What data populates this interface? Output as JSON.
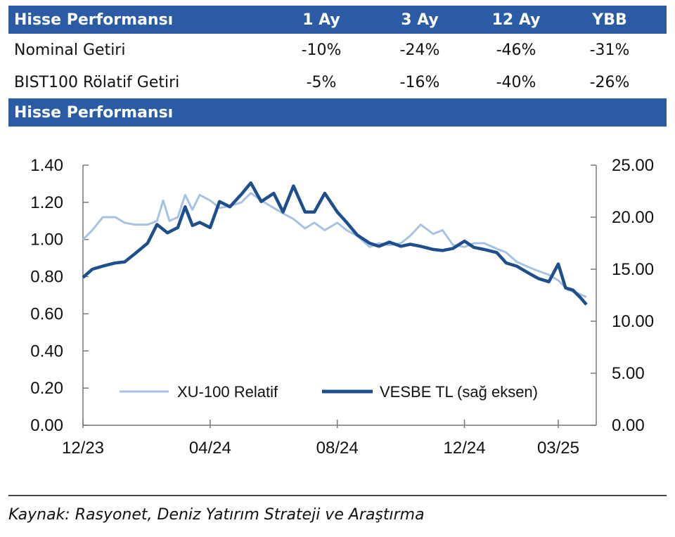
{
  "table": {
    "header": {
      "label": "Hisse Performansı",
      "cols": [
        "1 Ay",
        "3 Ay",
        "12 Ay",
        "YBB"
      ]
    },
    "rows": [
      {
        "label": "Nominal Getiri",
        "values": [
          "-10%",
          "-24%",
          "-46%",
          "-31%"
        ]
      },
      {
        "label": "BIST100 Rölatif Getiri",
        "values": [
          "-5%",
          "-16%",
          "-40%",
          "-26%"
        ]
      }
    ]
  },
  "section_title": "Hisse Performansı",
  "source": "Kaynak: Rasyonet, Deniz Yatırım Strateji ve Araştırma",
  "chart_data": {
    "type": "line",
    "x_ticks": [
      "12/23",
      "04/24",
      "08/24",
      "12/24",
      "03/25"
    ],
    "y_left": {
      "range": [
        0,
        1.4
      ],
      "ticks": [
        "0.00",
        "0.20",
        "0.40",
        "0.60",
        "0.80",
        "1.00",
        "1.20",
        "1.40"
      ]
    },
    "y_right": {
      "range": [
        0,
        25
      ],
      "ticks": [
        "0.00",
        "5.00",
        "10.00",
        "15.00",
        "20.00",
        "25.00"
      ]
    },
    "grid": false,
    "legend_position": "bottom-center",
    "series": [
      {
        "name": "XU-100 Relatif",
        "axis": "left",
        "color": "#a7c3e4",
        "points": [
          [
            "2023-12-01",
            1.0
          ],
          [
            "2023-12-10",
            1.05
          ],
          [
            "2023-12-20",
            1.12
          ],
          [
            "2024-01-01",
            1.12
          ],
          [
            "2024-01-10",
            1.09
          ],
          [
            "2024-01-20",
            1.08
          ],
          [
            "2024-02-01",
            1.08
          ],
          [
            "2024-02-10",
            1.1
          ],
          [
            "2024-02-16",
            1.21
          ],
          [
            "2024-02-22",
            1.1
          ],
          [
            "2024-03-01",
            1.12
          ],
          [
            "2024-03-08",
            1.24
          ],
          [
            "2024-03-15",
            1.16
          ],
          [
            "2024-03-22",
            1.24
          ],
          [
            "2024-04-01",
            1.21
          ],
          [
            "2024-04-10",
            1.17
          ],
          [
            "2024-04-20",
            1.18
          ],
          [
            "2024-05-01",
            1.2
          ],
          [
            "2024-05-10",
            1.25
          ],
          [
            "2024-05-20",
            1.21
          ],
          [
            "2024-06-01",
            1.17
          ],
          [
            "2024-06-10",
            1.14
          ],
          [
            "2024-06-20",
            1.11
          ],
          [
            "2024-07-01",
            1.06
          ],
          [
            "2024-07-10",
            1.09
          ],
          [
            "2024-07-20",
            1.05
          ],
          [
            "2024-08-01",
            1.09
          ],
          [
            "2024-08-10",
            1.05
          ],
          [
            "2024-08-20",
            1.02
          ],
          [
            "2024-09-01",
            0.96
          ],
          [
            "2024-09-10",
            0.98
          ],
          [
            "2024-09-20",
            0.97
          ],
          [
            "2024-10-01",
            0.98
          ],
          [
            "2024-10-10",
            1.02
          ],
          [
            "2024-10-20",
            1.08
          ],
          [
            "2024-11-01",
            1.03
          ],
          [
            "2024-11-10",
            1.05
          ],
          [
            "2024-11-20",
            0.97
          ],
          [
            "2024-12-01",
            0.96
          ],
          [
            "2024-12-10",
            0.98
          ],
          [
            "2024-12-20",
            0.98
          ],
          [
            "2025-01-01",
            0.95
          ],
          [
            "2025-01-10",
            0.93
          ],
          [
            "2025-01-20",
            0.88
          ],
          [
            "2025-02-01",
            0.85
          ],
          [
            "2025-02-10",
            0.83
          ],
          [
            "2025-02-20",
            0.81
          ],
          [
            "2025-03-01",
            0.78
          ],
          [
            "2025-03-10",
            0.73
          ],
          [
            "2025-03-20",
            0.71
          ],
          [
            "2025-03-28",
            0.69
          ]
        ]
      },
      {
        "name": "VESBE TL (sağ eksen)",
        "axis": "right",
        "color": "#1f4e8c",
        "points": [
          [
            "2023-12-01",
            14.2
          ],
          [
            "2023-12-10",
            15.0
          ],
          [
            "2023-12-20",
            15.3
          ],
          [
            "2024-01-01",
            15.6
          ],
          [
            "2024-01-10",
            15.7
          ],
          [
            "2024-01-20",
            16.5
          ],
          [
            "2024-02-01",
            17.5
          ],
          [
            "2024-02-10",
            19.3
          ],
          [
            "2024-02-20",
            18.5
          ],
          [
            "2024-03-01",
            19.0
          ],
          [
            "2024-03-08",
            21.0
          ],
          [
            "2024-03-15",
            19.2
          ],
          [
            "2024-03-22",
            19.5
          ],
          [
            "2024-04-01",
            19.0
          ],
          [
            "2024-04-10",
            21.5
          ],
          [
            "2024-04-20",
            21.0
          ],
          [
            "2024-05-01",
            22.2
          ],
          [
            "2024-05-10",
            23.3
          ],
          [
            "2024-05-20",
            21.5
          ],
          [
            "2024-06-01",
            22.3
          ],
          [
            "2024-06-10",
            20.5
          ],
          [
            "2024-06-20",
            23.0
          ],
          [
            "2024-07-01",
            20.5
          ],
          [
            "2024-07-10",
            20.5
          ],
          [
            "2024-07-20",
            22.3
          ],
          [
            "2024-08-01",
            20.5
          ],
          [
            "2024-08-10",
            19.5
          ],
          [
            "2024-08-20",
            18.3
          ],
          [
            "2024-09-01",
            17.5
          ],
          [
            "2024-09-10",
            17.2
          ],
          [
            "2024-09-20",
            17.6
          ],
          [
            "2024-10-01",
            17.2
          ],
          [
            "2024-10-10",
            17.4
          ],
          [
            "2024-10-20",
            17.2
          ],
          [
            "2024-11-01",
            16.9
          ],
          [
            "2024-11-10",
            16.8
          ],
          [
            "2024-11-20",
            17.0
          ],
          [
            "2024-12-01",
            17.7
          ],
          [
            "2024-12-10",
            17.1
          ],
          [
            "2024-12-20",
            16.9
          ],
          [
            "2025-01-01",
            16.6
          ],
          [
            "2025-01-10",
            15.6
          ],
          [
            "2025-01-20",
            15.3
          ],
          [
            "2025-02-01",
            14.6
          ],
          [
            "2025-02-10",
            14.1
          ],
          [
            "2025-02-20",
            13.8
          ],
          [
            "2025-03-01",
            15.5
          ],
          [
            "2025-03-08",
            13.2
          ],
          [
            "2025-03-15",
            13.0
          ],
          [
            "2025-03-22",
            12.3
          ],
          [
            "2025-03-28",
            11.6
          ]
        ]
      }
    ]
  }
}
